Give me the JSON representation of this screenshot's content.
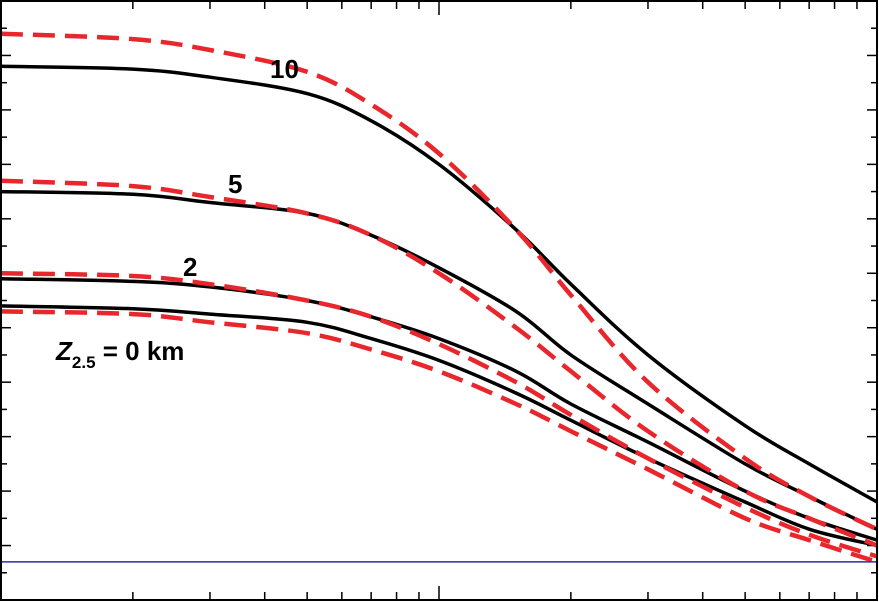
{
  "chart_data": {
    "type": "line",
    "title": "",
    "xlabel": "",
    "ylabel": "",
    "grid": false,
    "legend": "none",
    "x_scale": "log",
    "xlim": [
      0.1,
      10
    ],
    "ylim": [
      0,
      1.1
    ],
    "colors": {
      "frame": "#000000",
      "solid": "#000000",
      "dashed": "#e8262b",
      "reference": "#2e3192"
    },
    "reference_line": {
      "y": 0.07
    },
    "labels": [
      {
        "text": "10",
        "series": "10"
      },
      {
        "text": "5",
        "series": "5"
      },
      {
        "text": "2",
        "series": "2"
      },
      {
        "text_main": "Z",
        "text_sub": "2.5",
        "text_rest": " = 0 km",
        "series": "0"
      }
    ],
    "x": [
      0.1,
      0.2,
      0.3,
      0.5,
      0.7,
      1,
      1.5,
      2,
      3,
      5,
      7,
      10
    ],
    "series": [
      {
        "name": "10",
        "style": "solid",
        "values": [
          0.98,
          0.975,
          0.96,
          0.93,
          0.88,
          0.8,
          0.68,
          0.58,
          0.45,
          0.32,
          0.25,
          0.18
        ]
      },
      {
        "name": "10",
        "style": "dashed",
        "values": [
          1.04,
          1.03,
          1.01,
          0.97,
          0.91,
          0.82,
          0.68,
          0.56,
          0.4,
          0.26,
          0.19,
          0.13
        ]
      },
      {
        "name": "5",
        "style": "solid",
        "values": [
          0.75,
          0.745,
          0.73,
          0.71,
          0.67,
          0.61,
          0.53,
          0.45,
          0.36,
          0.25,
          0.19,
          0.13
        ]
      },
      {
        "name": "5",
        "style": "dashed",
        "values": [
          0.77,
          0.76,
          0.74,
          0.71,
          0.67,
          0.6,
          0.5,
          0.42,
          0.31,
          0.2,
          0.15,
          0.1
        ]
      },
      {
        "name": "2",
        "style": "solid",
        "values": [
          0.59,
          0.585,
          0.575,
          0.55,
          0.52,
          0.48,
          0.42,
          0.36,
          0.29,
          0.2,
          0.15,
          0.11
        ]
      },
      {
        "name": "2",
        "style": "dashed",
        "values": [
          0.6,
          0.595,
          0.58,
          0.55,
          0.52,
          0.47,
          0.4,
          0.34,
          0.26,
          0.17,
          0.12,
          0.08
        ]
      },
      {
        "name": "0",
        "style": "solid",
        "values": [
          0.54,
          0.535,
          0.525,
          0.51,
          0.48,
          0.44,
          0.38,
          0.33,
          0.26,
          0.18,
          0.13,
          0.1
        ]
      },
      {
        "name": "0",
        "style": "dashed",
        "values": [
          0.53,
          0.525,
          0.51,
          0.49,
          0.46,
          0.42,
          0.36,
          0.31,
          0.24,
          0.15,
          0.11,
          0.07
        ]
      }
    ]
  }
}
